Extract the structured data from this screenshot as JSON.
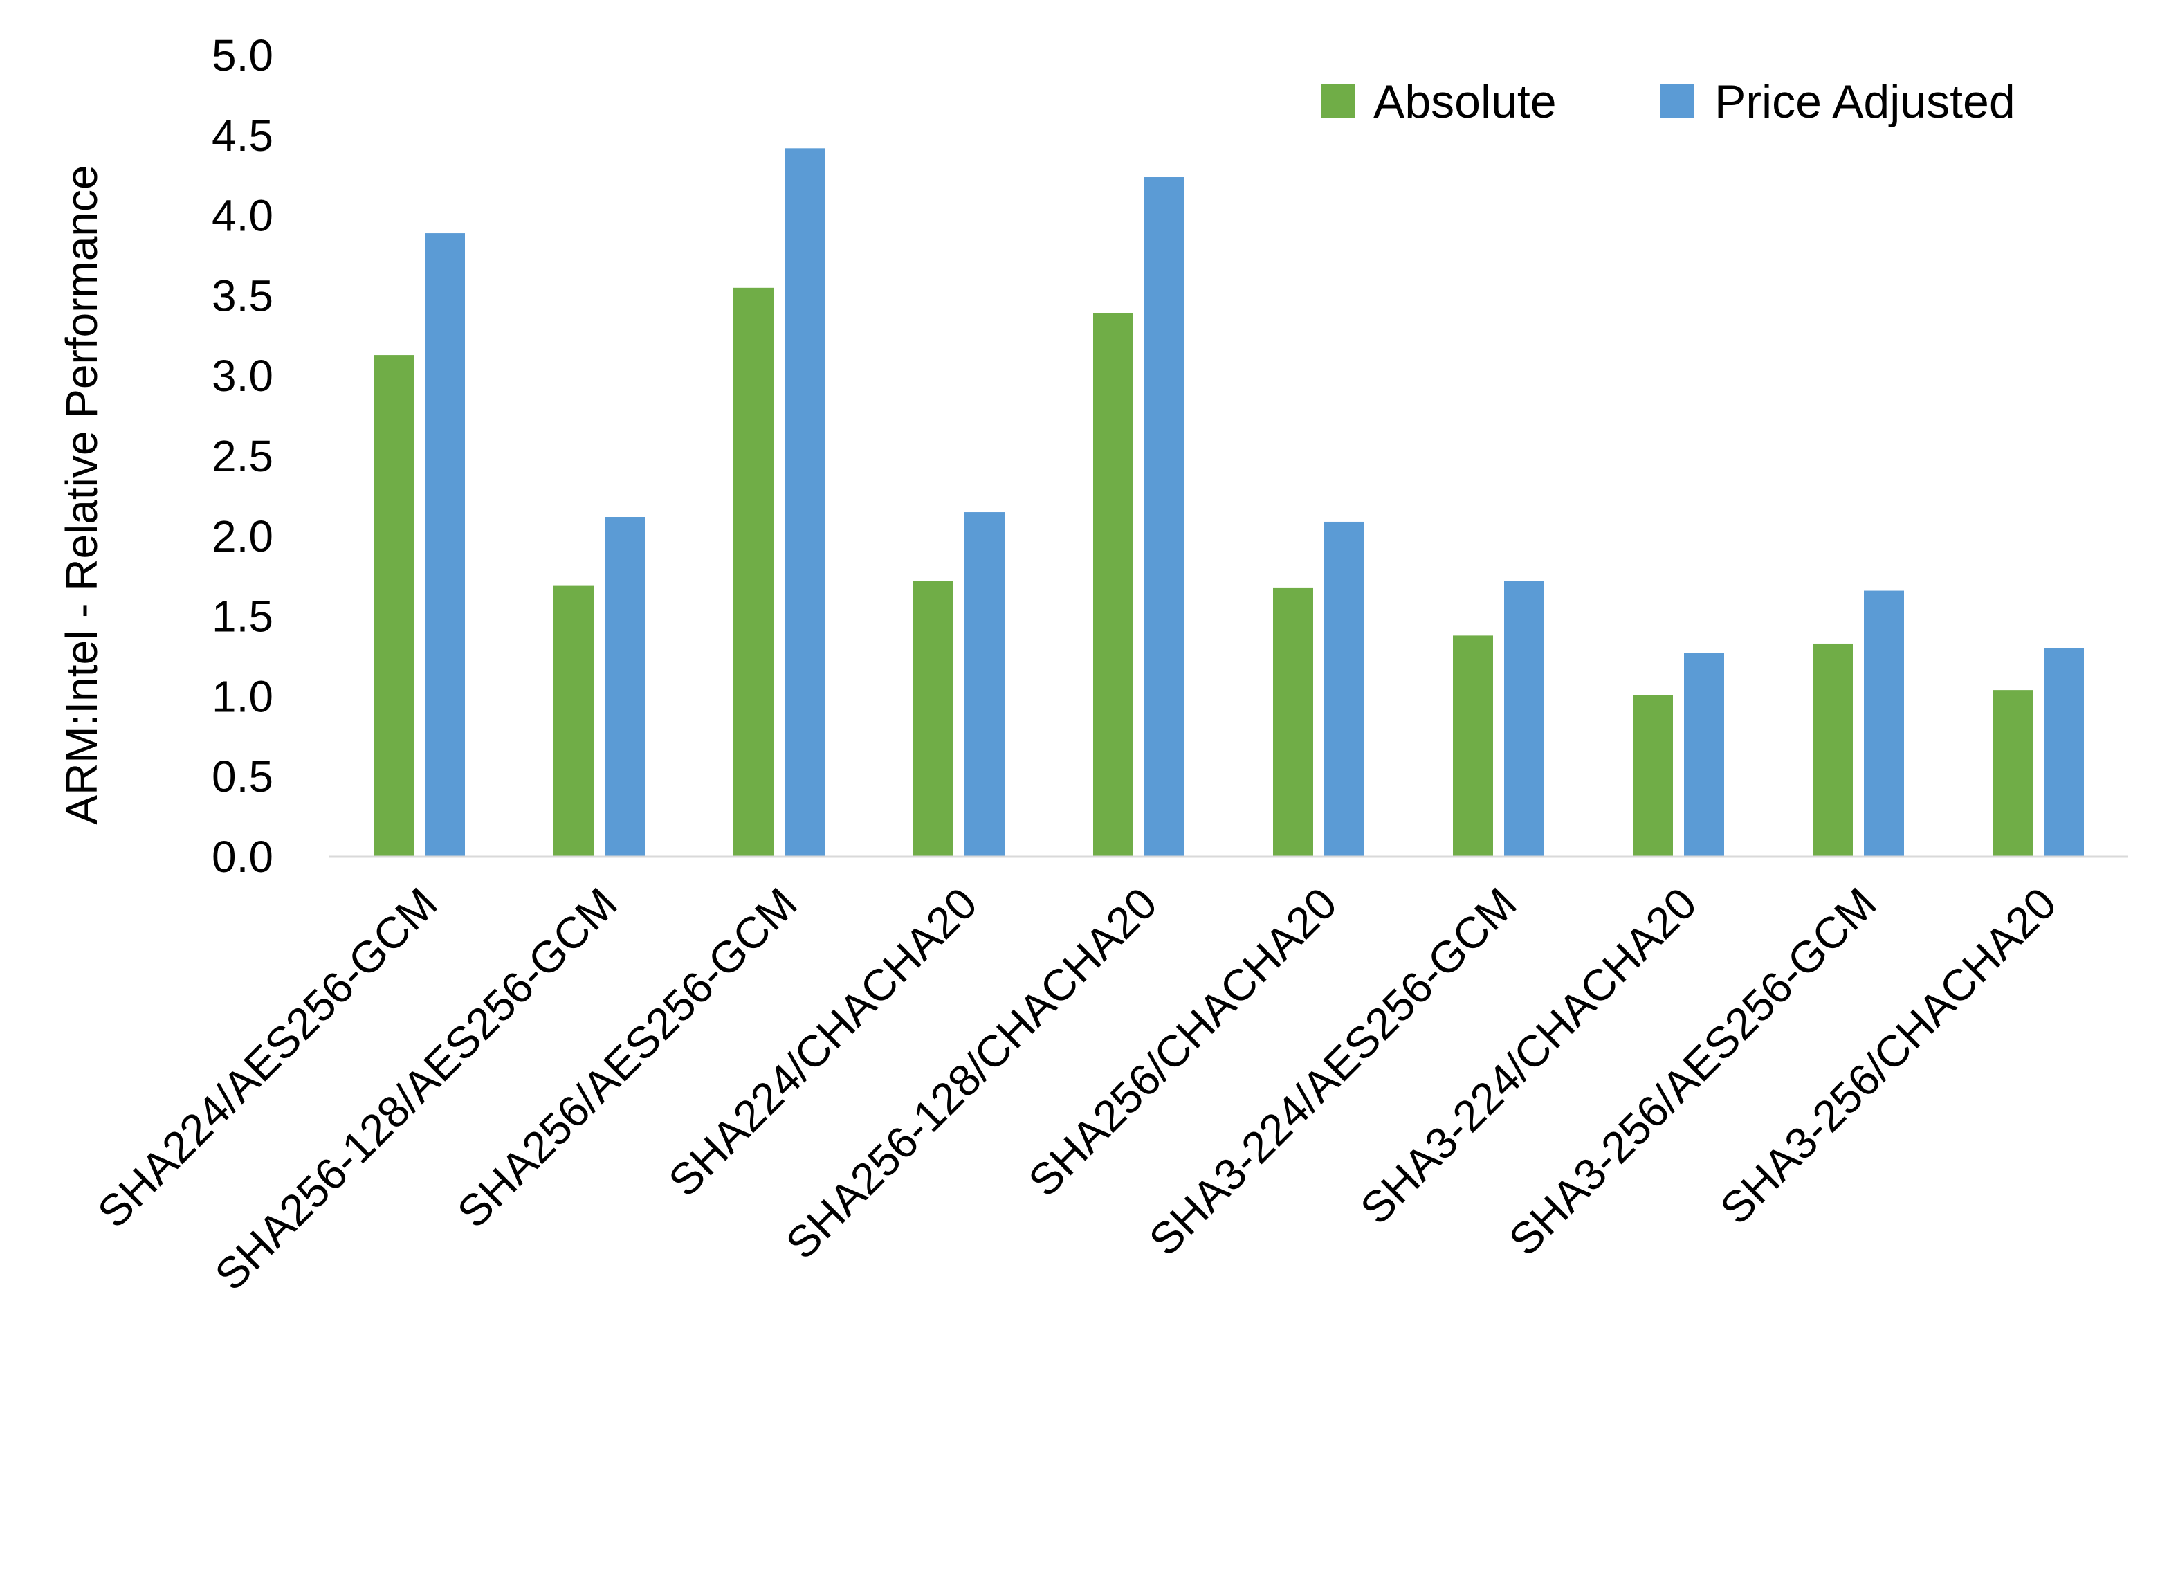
{
  "chart_data": {
    "type": "bar",
    "title": "",
    "xlabel": "",
    "ylabel": "ARM:Intel - Relative Performance",
    "ylim": [
      0,
      5.0
    ],
    "yticks": [
      "0.0",
      "0.5",
      "1.0",
      "1.5",
      "2.0",
      "2.5",
      "3.0",
      "3.5",
      "4.0",
      "4.5",
      "5.0"
    ],
    "grid": false,
    "legend_position": "top-right",
    "categories": [
      "SHA224/AES256-GCM",
      "SHA256-128/AES256-GCM",
      "SHA256/AES256-GCM",
      "SHA224/CHACHA20",
      "SHA256-128/CHACHA20",
      "SHA256/CHACHA20",
      "SHA3-224/AES256-GCM",
      "SHA3-224/CHACHA20",
      "SHA3-256/AES256-GCM",
      "SHA3-256/CHACHA20"
    ],
    "series": [
      {
        "name": "Absolute",
        "color": "#70AD47",
        "values": [
          3.13,
          1.69,
          3.55,
          1.72,
          3.39,
          1.68,
          1.38,
          1.01,
          1.33,
          1.04
        ]
      },
      {
        "name": "Price Adjusted",
        "color": "#5B9BD5",
        "values": [
          3.89,
          2.12,
          4.42,
          2.15,
          4.24,
          2.09,
          1.72,
          1.27,
          1.66,
          1.3
        ]
      }
    ]
  }
}
